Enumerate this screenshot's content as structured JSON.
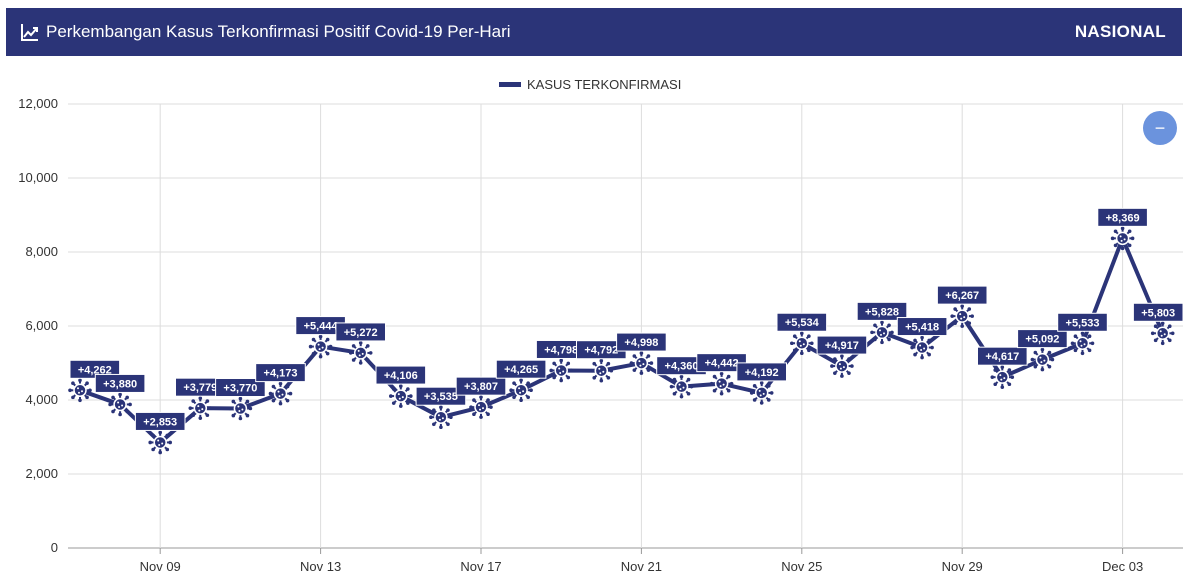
{
  "header": {
    "title": "Perkembangan Kasus Terkonfirmasi Positif Covid-19 Per-Hari",
    "scope": "NASIONAL",
    "icon": "trend-chart-icon"
  },
  "zoom_button": {
    "label": "−",
    "icon": "minus-icon"
  },
  "colors": {
    "header_bg": "#2b3478",
    "series": "#2b3478",
    "label_bg": "#2b3478",
    "grid": "#dddddd",
    "zoom": "#6b93dd"
  },
  "chart_data": {
    "type": "line",
    "title": "",
    "xlabel": "",
    "ylabel": "",
    "legend": {
      "position": "top-center",
      "entries": [
        "KASUS TERKONFIRMASI"
      ]
    },
    "grid": true,
    "ylim": [
      0,
      12000
    ],
    "y_ticks": [
      "0",
      "2,000",
      "4,000",
      "6,000",
      "8,000",
      "10,000",
      "12,000"
    ],
    "x_tick_labels": [
      "Nov 09",
      "Nov 13",
      "Nov 17",
      "Nov 21",
      "Nov 25",
      "Nov 29",
      "Dec 03"
    ],
    "categories": [
      "Nov 07",
      "Nov 08",
      "Nov 09",
      "Nov 10",
      "Nov 11",
      "Nov 12",
      "Nov 13",
      "Nov 14",
      "Nov 15",
      "Nov 16",
      "Nov 17",
      "Nov 18",
      "Nov 19",
      "Nov 20",
      "Nov 21",
      "Nov 22",
      "Nov 23",
      "Nov 24",
      "Nov 25",
      "Nov 26",
      "Nov 27",
      "Nov 28",
      "Nov 29",
      "Nov 30",
      "Dec 01",
      "Dec 02",
      "Dec 03",
      "Dec 04"
    ],
    "series": [
      {
        "name": "KASUS TERKONFIRMASI",
        "values": [
          4262,
          3880,
          2853,
          3779,
          3770,
          4173,
          5444,
          5272,
          4106,
          3535,
          3807,
          4265,
          4798,
          4792,
          4998,
          4360,
          4442,
          4192,
          5534,
          4917,
          5828,
          5418,
          6267,
          4617,
          5092,
          5533,
          8369,
          5803
        ],
        "labels": [
          "+4,262",
          "+3,880",
          "+2,853",
          "+3,779",
          "+3,770",
          "+4,173",
          "+5,444",
          "+5,272",
          "+4,106",
          "+3,535",
          "+3,807",
          "+4,265",
          "+4,798",
          "+4,792",
          "+4,998",
          "+4,360",
          "+4,442",
          "+4,192",
          "+5,534",
          "+4,917",
          "+5,828",
          "+5,418",
          "+6,267",
          "+4,617",
          "+5,092",
          "+5,533",
          "+8,369",
          "+5,803"
        ]
      }
    ]
  }
}
